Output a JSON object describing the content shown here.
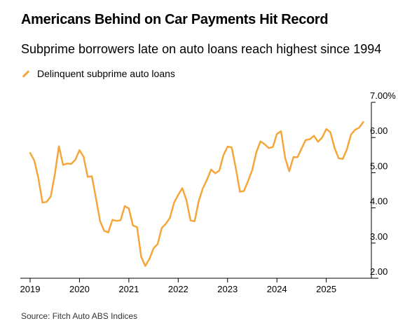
{
  "header": {
    "title": "Americans Behind on Car Payments Hit Record",
    "subtitle": "Subprime borrowers late on auto loans reach highest since 1994"
  },
  "legend": {
    "label": "Delinquent subprime auto loans"
  },
  "footer": {
    "source": "Source: Fitch Auto ABS Indices"
  },
  "colors": {
    "series": "#f5a63a",
    "axis": "#000000"
  },
  "chart_data": {
    "type": "line",
    "title": "Americans Behind on Car Payments Hit Record",
    "subtitle": "Subprime borrowers late on auto loans reach highest since 1994",
    "xlabel": "",
    "ylabel": "",
    "grid": false,
    "legend_position": "top-left",
    "xlim": [
      2019.0,
      2025.8
    ],
    "ylim": [
      2.0,
      7.0
    ],
    "x_ticks": [
      2019,
      2020,
      2021,
      2022,
      2023,
      2024,
      2025
    ],
    "x_tick_labels": [
      "2019",
      "2020",
      "2021",
      "2022",
      "2023",
      "2024",
      "2025"
    ],
    "y_ticks": [
      2,
      3,
      4,
      5,
      6,
      7
    ],
    "y_tick_labels": [
      "2.00",
      "3.00",
      "4.00",
      "5.00",
      "6.00",
      "7.00%"
    ],
    "series": [
      {
        "name": "Delinquent subprime auto loans",
        "x": [
          2019.0,
          2019.083,
          2019.167,
          2019.25,
          2019.333,
          2019.417,
          2019.5,
          2019.583,
          2019.667,
          2019.75,
          2019.833,
          2019.917,
          2020.0,
          2020.083,
          2020.167,
          2020.25,
          2020.333,
          2020.417,
          2020.5,
          2020.583,
          2020.667,
          2020.75,
          2020.833,
          2020.917,
          2021.0,
          2021.083,
          2021.167,
          2021.25,
          2021.333,
          2021.417,
          2021.5,
          2021.583,
          2021.667,
          2021.75,
          2021.833,
          2021.917,
          2022.0,
          2022.083,
          2022.167,
          2022.25,
          2022.333,
          2022.417,
          2022.5,
          2022.583,
          2022.667,
          2022.75,
          2022.833,
          2022.917,
          2023.0,
          2023.083,
          2023.167,
          2023.25,
          2023.333,
          2023.417,
          2023.5,
          2023.583,
          2023.667,
          2023.75,
          2023.833,
          2023.917,
          2024.0,
          2024.083,
          2024.167,
          2024.25,
          2024.333,
          2024.417,
          2024.5,
          2024.583,
          2024.667,
          2024.75,
          2024.833,
          2024.917,
          2025.0,
          2025.083,
          2025.167,
          2025.25,
          2025.333,
          2025.417,
          2025.5,
          2025.583,
          2025.667,
          2025.75
        ],
        "values": [
          5.56,
          5.35,
          4.85,
          4.15,
          4.17,
          4.32,
          4.95,
          5.75,
          5.22,
          5.26,
          5.25,
          5.37,
          5.64,
          5.45,
          4.88,
          4.9,
          4.28,
          3.62,
          3.35,
          3.3,
          3.66,
          3.63,
          3.65,
          4.05,
          3.98,
          3.5,
          3.45,
          2.61,
          2.35,
          2.55,
          2.85,
          2.97,
          3.43,
          3.55,
          3.72,
          4.15,
          4.37,
          4.56,
          4.22,
          3.64,
          3.62,
          4.2,
          4.56,
          4.8,
          5.09,
          4.98,
          5.06,
          5.5,
          5.74,
          5.72,
          5.13,
          4.46,
          4.48,
          4.77,
          5.08,
          5.58,
          5.89,
          5.81,
          5.7,
          5.73,
          6.1,
          6.18,
          5.42,
          5.04,
          5.44,
          5.44,
          5.69,
          5.93,
          5.95,
          6.05,
          5.88,
          6.0,
          6.24,
          6.15,
          5.71,
          5.41,
          5.39,
          5.66,
          6.08,
          6.22,
          6.28,
          6.44
        ]
      }
    ]
  }
}
